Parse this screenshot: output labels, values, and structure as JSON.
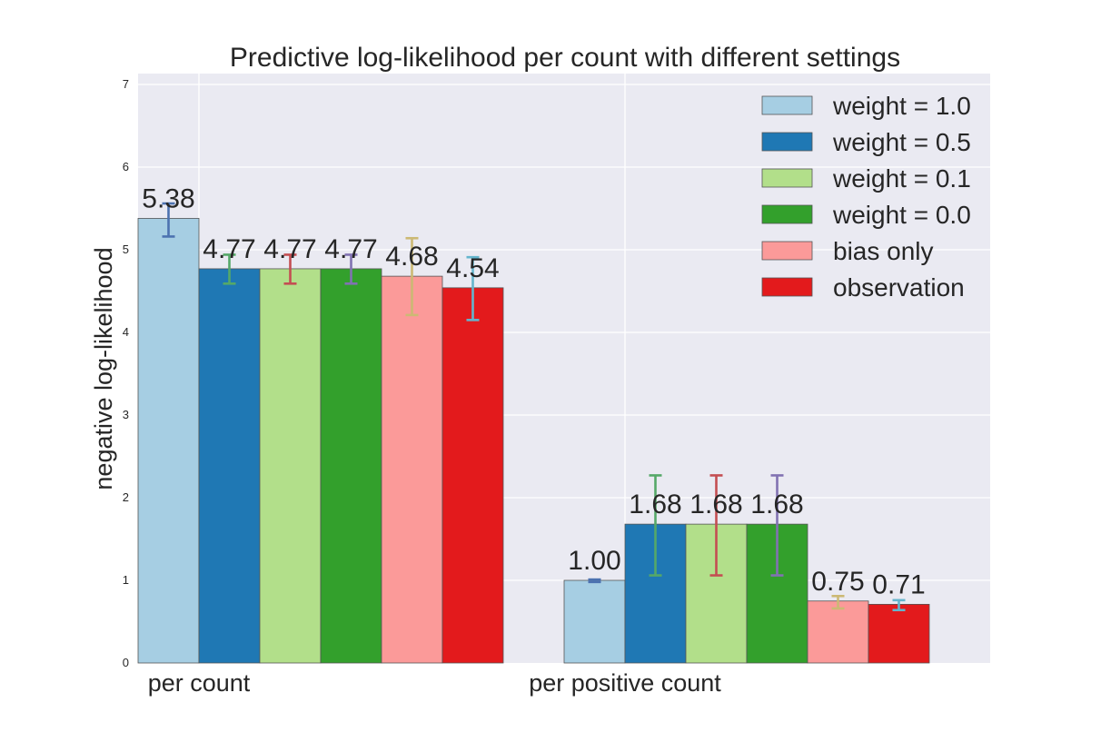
{
  "chart_data": {
    "type": "bar",
    "title": "Predictive log-likelihood per count with different settings",
    "xlabel": "",
    "ylabel": "negative log-likelihood",
    "ylim": [
      0,
      7
    ],
    "yticks": [
      0,
      1,
      2,
      3,
      4,
      5,
      6,
      7
    ],
    "grid": true,
    "legend_position": "top-right",
    "categories": [
      "per count",
      "per positive count"
    ],
    "series": [
      {
        "name": "weight = 1.0",
        "values": [
          5.38,
          1.0
        ],
        "labels": [
          "5.38",
          "1.00"
        ],
        "err_low": [
          5.16,
          0.98
        ],
        "err_high": [
          5.56,
          1.01
        ],
        "color": "#a6cee3",
        "err_color": "#4c72b0"
      },
      {
        "name": "weight = 0.5",
        "values": [
          4.77,
          1.68
        ],
        "labels": [
          "4.77",
          "1.68"
        ],
        "err_low": [
          4.59,
          1.06
        ],
        "err_high": [
          4.94,
          2.27
        ],
        "color": "#1f78b4",
        "err_color": "#55a868"
      },
      {
        "name": "weight = 0.1",
        "values": [
          4.77,
          1.68
        ],
        "labels": [
          "4.77",
          "1.68"
        ],
        "err_low": [
          4.59,
          1.06
        ],
        "err_high": [
          4.94,
          2.27
        ],
        "color": "#b2df8a",
        "err_color": "#c44e52"
      },
      {
        "name": "weight = 0.0",
        "values": [
          4.77,
          1.68
        ],
        "labels": [
          "4.77",
          "1.68"
        ],
        "err_low": [
          4.59,
          1.06
        ],
        "err_high": [
          4.94,
          2.27
        ],
        "color": "#33a02c",
        "err_color": "#8172b2"
      },
      {
        "name": "bias only",
        "values": [
          4.68,
          0.75
        ],
        "labels": [
          "4.68",
          "0.75"
        ],
        "err_low": [
          4.21,
          0.66
        ],
        "err_high": [
          5.14,
          0.81
        ],
        "color": "#fb9a99",
        "err_color": "#ccb974"
      },
      {
        "name": "observation",
        "values": [
          4.54,
          0.71
        ],
        "labels": [
          "4.54",
          "0.71"
        ],
        "err_low": [
          4.15,
          0.64
        ],
        "err_high": [
          4.91,
          0.76
        ],
        "color": "#e31a1c",
        "err_color": "#64b5cd"
      }
    ],
    "colors": {
      "plot_background": "#eaeaf2",
      "grid": "#ffffff",
      "bar_edge": "#555555"
    }
  }
}
